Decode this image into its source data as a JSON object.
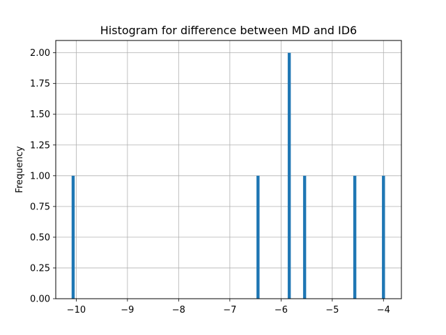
{
  "chart_data": {
    "type": "bar",
    "title": "Histogram for difference between MD and ID6",
    "xlabel": "",
    "ylabel": "Frequency",
    "xlim": [
      -10.4,
      -3.65
    ],
    "ylim": [
      0,
      2.1
    ],
    "x_ticks": [
      -10,
      -9,
      -8,
      -7,
      -6,
      -5,
      -4
    ],
    "x_tick_labels": [
      "−10",
      "−9",
      "−8",
      "−7",
      "−6",
      "−5",
      "−4"
    ],
    "y_ticks": [
      0,
      0.25,
      0.5,
      0.75,
      1.0,
      1.25,
      1.5,
      1.75,
      2.0
    ],
    "y_tick_labels": [
      "0.00",
      "0.25",
      "0.50",
      "0.75",
      "1.00",
      "1.25",
      "1.50",
      "1.75",
      "2.00"
    ],
    "bin_width": 0.06,
    "bars": [
      {
        "x": -10.06,
        "count": 1
      },
      {
        "x": -6.45,
        "count": 1
      },
      {
        "x": -5.84,
        "count": 2
      },
      {
        "x": -5.54,
        "count": 1
      },
      {
        "x": -4.56,
        "count": 1
      },
      {
        "x": -4.0,
        "count": 1
      }
    ],
    "grid": true,
    "bar_color": "#1f77b4",
    "grid_color": "#b0b0b0"
  }
}
